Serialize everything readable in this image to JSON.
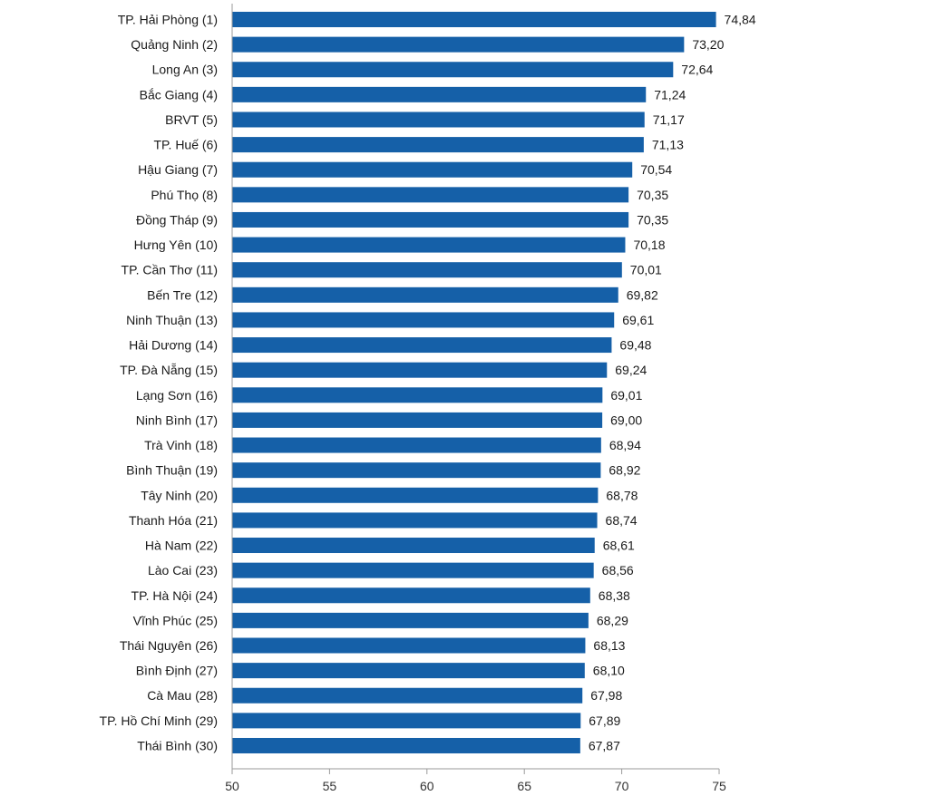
{
  "chart_data": {
    "type": "bar",
    "orientation": "horizontal",
    "title": "",
    "xlabel": "",
    "ylabel": "",
    "xlim": [
      50,
      75
    ],
    "x_ticks": [
      "50",
      "55",
      "60",
      "65",
      "70",
      "75"
    ],
    "grid": false,
    "legend": "none",
    "bar_color": "#1560a8",
    "categories": [
      "TP. Hải Phòng (1)",
      "Quảng Ninh (2)",
      "Long An (3)",
      "Bắc Giang (4)",
      "BRVT (5)",
      "TP. Huế (6)",
      "Hậu Giang (7)",
      "Phú Thọ (8)",
      "Đồng Tháp (9)",
      "Hưng Yên (10)",
      "TP. Cần Thơ (11)",
      "Bến Tre (12)",
      "Ninh Thuận (13)",
      "Hải Dương (14)",
      "TP. Đà Nẵng (15)",
      "Lạng Sơn (16)",
      "Ninh Bình (17)",
      "Trà Vinh (18)",
      "Bình Thuận (19)",
      "Tây Ninh (20)",
      "Thanh Hóa (21)",
      "Hà Nam (22)",
      "Lào Cai (23)",
      "TP. Hà Nội (24)",
      "Vĩnh Phúc (25)",
      "Thái Nguyên (26)",
      "Bình Định (27)",
      "Cà Mau (28)",
      "TP. Hồ Chí Minh (29)",
      "Thái Bình (30)"
    ],
    "values": [
      74.84,
      73.2,
      72.64,
      71.24,
      71.17,
      71.13,
      70.54,
      70.35,
      70.35,
      70.18,
      70.01,
      69.82,
      69.61,
      69.48,
      69.24,
      69.01,
      69.0,
      68.94,
      68.92,
      68.78,
      68.74,
      68.61,
      68.56,
      68.38,
      68.29,
      68.13,
      68.1,
      67.98,
      67.89,
      67.87
    ],
    "value_labels": [
      "74,84",
      "73,20",
      "72,64",
      "71,24",
      "71,17",
      "71,13",
      "70,54",
      "70,35",
      "70,35",
      "70,18",
      "70,01",
      "69,82",
      "69,61",
      "69,48",
      "69,24",
      "69,01",
      "69,00",
      "68,94",
      "68,92",
      "68,78",
      "68,74",
      "68,61",
      "68,56",
      "68,38",
      "68,29",
      "68,13",
      "68,10",
      "67,98",
      "67,89",
      "67,87"
    ]
  }
}
